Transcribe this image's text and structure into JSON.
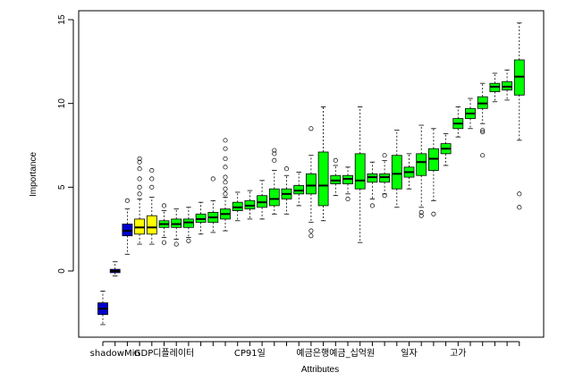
{
  "chart_data": {
    "type": "boxplot",
    "title": "",
    "xlabel": "Attributes",
    "ylabel": "Importance",
    "ylim": [
      -4.0,
      15.5
    ],
    "yticks": [
      0,
      5,
      10,
      15
    ],
    "grid": false,
    "legend": "none",
    "colors": {
      "shadow": "#0000cd",
      "tentative": "#ffff00",
      "confirmed": "#00ff00",
      "line": "#000000"
    },
    "xtick_labels": [
      {
        "box": 1,
        "text": "shadowMin"
      },
      {
        "box": 5,
        "text": "GDP디플레이터"
      },
      {
        "box": 12,
        "text": "CP91일"
      },
      {
        "box": 19,
        "text": "예금은행예금_십억원"
      },
      {
        "box": 25,
        "text": "일자"
      },
      {
        "box": 29,
        "text": "고가"
      }
    ],
    "boxes": [
      {
        "group": "shadow",
        "stats": [
          -3.2,
          -2.6,
          -2.25,
          -1.9,
          -1.2
        ],
        "outliers": []
      },
      {
        "group": "shadow",
        "stats": [
          -0.3,
          -0.1,
          0.0,
          0.1,
          0.55
        ],
        "outliers": []
      },
      {
        "group": "shadow",
        "stats": [
          1.0,
          2.1,
          2.4,
          2.8,
          3.7
        ],
        "outliers": [
          4.2
        ]
      },
      {
        "group": "tentative",
        "stats": [
          1.6,
          2.2,
          2.6,
          3.1,
          4.3
        ],
        "outliers": [
          4.6,
          5.0,
          5.5,
          6.1,
          6.5,
          6.7
        ]
      },
      {
        "group": "tentative",
        "stats": [
          1.6,
          2.2,
          2.6,
          3.3,
          4.4
        ],
        "outliers": [
          5.0,
          5.5,
          6.0
        ]
      },
      {
        "group": "confirmed",
        "stats": [
          2.0,
          2.6,
          2.8,
          3.0,
          3.6
        ],
        "outliers": [
          1.7,
          3.9
        ]
      },
      {
        "group": "confirmed",
        "stats": [
          1.9,
          2.6,
          2.8,
          3.1,
          3.7
        ],
        "outliers": [
          1.6
        ]
      },
      {
        "group": "confirmed",
        "stats": [
          2.0,
          2.6,
          2.9,
          3.1,
          3.8
        ],
        "outliers": [
          1.8
        ]
      },
      {
        "group": "confirmed",
        "stats": [
          2.2,
          2.9,
          3.1,
          3.4,
          4.1
        ],
        "outliers": []
      },
      {
        "group": "confirmed",
        "stats": [
          2.3,
          2.9,
          3.2,
          3.5,
          4.2
        ],
        "outliers": [
          5.5
        ]
      },
      {
        "group": "confirmed",
        "stats": [
          2.4,
          3.1,
          3.4,
          3.7,
          4.4
        ],
        "outliers": [
          4.6,
          4.9,
          5.3,
          5.6,
          6.2,
          6.7,
          7.3,
          7.8
        ]
      },
      {
        "group": "confirmed",
        "stats": [
          3.0,
          3.6,
          3.8,
          4.1,
          4.7
        ],
        "outliers": []
      },
      {
        "group": "confirmed",
        "stats": [
          3.1,
          3.7,
          3.9,
          4.2,
          4.8
        ],
        "outliers": []
      },
      {
        "group": "confirmed",
        "stats": [
          3.1,
          3.8,
          4.1,
          4.5,
          5.4
        ],
        "outliers": []
      },
      {
        "group": "confirmed",
        "stats": [
          3.4,
          3.9,
          4.3,
          4.9,
          6.0
        ],
        "outliers": [
          6.6,
          7.0,
          7.2
        ]
      },
      {
        "group": "confirmed",
        "stats": [
          3.4,
          4.3,
          4.6,
          4.9,
          5.7
        ],
        "outliers": [
          6.1
        ]
      },
      {
        "group": "confirmed",
        "stats": [
          3.9,
          4.6,
          4.8,
          5.1,
          5.9
        ],
        "outliers": []
      },
      {
        "group": "confirmed",
        "stats": [
          2.9,
          4.6,
          5.1,
          5.8,
          6.9
        ],
        "outliers": [
          2.1,
          2.4,
          8.5
        ]
      },
      {
        "group": "confirmed",
        "stats": [
          3.0,
          3.9,
          5.1,
          7.1,
          9.8
        ],
        "outliers": []
      },
      {
        "group": "confirmed",
        "stats": [
          4.5,
          5.2,
          5.4,
          5.7,
          6.3
        ],
        "outliers": [
          6.6
        ]
      },
      {
        "group": "confirmed",
        "stats": [
          4.6,
          5.2,
          5.5,
          5.7,
          6.2
        ],
        "outliers": [
          4.3
        ]
      },
      {
        "group": "confirmed",
        "stats": [
          1.7,
          4.9,
          5.4,
          7.0,
          9.8
        ],
        "outliers": []
      },
      {
        "group": "confirmed",
        "stats": [
          4.3,
          5.3,
          5.6,
          5.8,
          6.5
        ],
        "outliers": [
          3.9
        ]
      },
      {
        "group": "confirmed",
        "stats": [
          4.6,
          5.3,
          5.6,
          5.8,
          6.6
        ],
        "outliers": [
          4.5,
          6.9
        ]
      },
      {
        "group": "confirmed",
        "stats": [
          3.8,
          4.9,
          5.8,
          6.9,
          8.4
        ],
        "outliers": []
      },
      {
        "group": "confirmed",
        "stats": [
          4.9,
          5.6,
          5.9,
          6.2,
          7.0
        ],
        "outliers": []
      },
      {
        "group": "confirmed",
        "stats": [
          3.8,
          5.7,
          6.5,
          7.0,
          8.7
        ],
        "outliers": [
          3.3,
          3.5
        ]
      },
      {
        "group": "confirmed",
        "stats": [
          4.2,
          6.0,
          6.7,
          7.3,
          8.5
        ],
        "outliers": [
          3.4
        ]
      },
      {
        "group": "confirmed",
        "stats": [
          6.3,
          7.0,
          7.3,
          7.6,
          8.2
        ],
        "outliers": []
      },
      {
        "group": "confirmed",
        "stats": [
          8.0,
          8.5,
          8.8,
          9.1,
          9.8
        ],
        "outliers": []
      },
      {
        "group": "confirmed",
        "stats": [
          8.5,
          9.1,
          9.4,
          9.7,
          10.3
        ],
        "outliers": []
      },
      {
        "group": "confirmed",
        "stats": [
          8.8,
          9.7,
          10.0,
          10.4,
          11.2
        ],
        "outliers": [
          6.9,
          8.3,
          8.4
        ]
      },
      {
        "group": "confirmed",
        "stats": [
          10.1,
          10.7,
          11.0,
          11.2,
          11.8
        ],
        "outliers": []
      },
      {
        "group": "confirmed",
        "stats": [
          10.2,
          10.8,
          11.0,
          11.3,
          12.0
        ],
        "outliers": []
      },
      {
        "group": "confirmed",
        "stats": [
          7.8,
          10.5,
          11.6,
          12.6,
          14.8
        ],
        "outliers": [
          3.8,
          4.6
        ]
      }
    ]
  }
}
